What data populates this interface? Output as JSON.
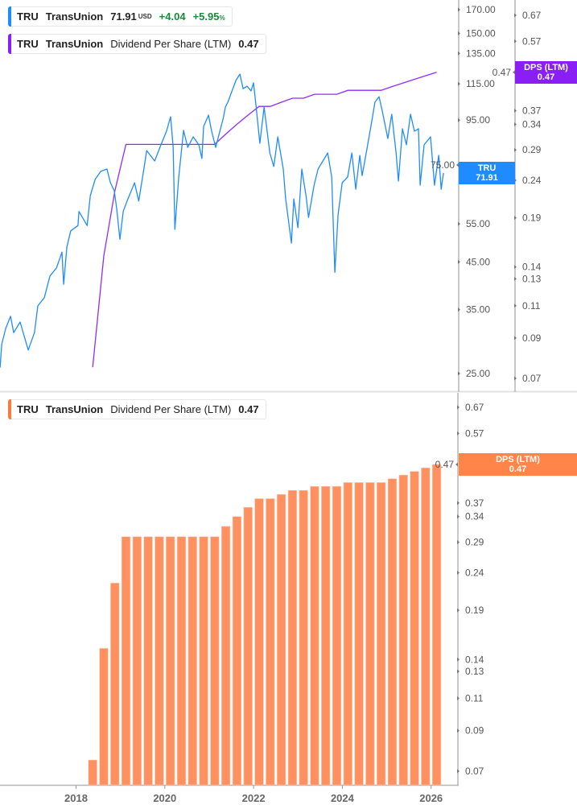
{
  "colors": {
    "price_line": "#1f8bff",
    "dps_line": "#8f2bff",
    "dps_bars": "#ff9160",
    "tru_badge": "#1e8cff",
    "dps_badge_top": "#8a1ff5",
    "dps_badge_bottom": "#ff8548"
  },
  "legends": {
    "price": {
      "ticker": "TRU",
      "name": "TransUnion",
      "price": "71.91",
      "currency": "USD",
      "change": "+4.04",
      "change_pct": "+5.95",
      "pct_sign": "%"
    },
    "dps_top": {
      "ticker": "TRU",
      "name": "TransUnion",
      "metric": "Dividend Per Share (LTM)",
      "value": "0.47"
    },
    "dps_bottom": {
      "ticker": "TRU",
      "name": "TransUnion",
      "metric": "Dividend Per Share (LTM)",
      "value": "0.47"
    }
  },
  "badges": {
    "tru": {
      "label": "TRU",
      "value": "71.91"
    },
    "dps_top": {
      "label": "DPS (LTM)",
      "value": "0.47"
    },
    "dps_bottom": {
      "label": "DPS (LTM)",
      "value": "0.47"
    }
  },
  "chart_data": [
    {
      "type": "line",
      "scale": "log",
      "x_ticks": [
        "2018",
        "2020",
        "2022",
        "2024",
        "2026"
      ],
      "y_ticks": [
        "170.00",
        "150.00",
        "135.00",
        "115.00",
        "95.00",
        "75.00",
        "55.00",
        "45.00",
        "35.00",
        "25.00"
      ],
      "y2_ticks": [
        "0.67",
        "0.57",
        "0.47",
        "0.37",
        "0.34",
        "0.29",
        "0.24",
        "0.19",
        "0.14",
        "0.13",
        "0.11",
        "0.09",
        "0.07"
      ],
      "ylim": [
        25,
        170
      ],
      "y2lim": [
        0.07,
        0.67
      ],
      "series": [
        {
          "name": "TRU",
          "axis": "left",
          "points": [
            [
              "2016-04-15",
              25.8
            ],
            [
              "2016-04-29",
              29.2
            ],
            [
              "2016-05-31",
              31.7
            ],
            [
              "2016-07-10",
              33.8
            ],
            [
              "2016-08-05",
              31.0
            ],
            [
              "2016-09-28",
              32.8
            ],
            [
              "2016-10-30",
              30.5
            ],
            [
              "2016-12-03",
              28.3
            ],
            [
              "2017-01-24",
              31.0
            ],
            [
              "2017-02-21",
              35.7
            ],
            [
              "2017-04-14",
              37.3
            ],
            [
              "2017-05-30",
              41.8
            ],
            [
              "2017-07-23",
              43.6
            ],
            [
              "2017-09-07",
              47.4
            ],
            [
              "2017-09-21",
              40.0
            ],
            [
              "2017-10-17",
              48.7
            ],
            [
              "2017-11-18",
              53.0
            ],
            [
              "2018-01-17",
              54.5
            ],
            [
              "2018-01-25",
              58.7
            ],
            [
              "2018-04-01",
              54.5
            ],
            [
              "2018-04-27",
              63.8
            ],
            [
              "2018-06-06",
              69.5
            ],
            [
              "2018-07-22",
              72.5
            ],
            [
              "2018-09-12",
              73.4
            ],
            [
              "2018-10-10",
              68.3
            ],
            [
              "2018-11-11",
              65.5
            ],
            [
              "2018-12-01",
              59.4
            ],
            [
              "2018-12-27",
              50.7
            ],
            [
              "2019-01-24",
              58.7
            ],
            [
              "2019-02-25",
              62.0
            ],
            [
              "2019-04-26",
              68.3
            ],
            [
              "2019-05-30",
              62.0
            ],
            [
              "2019-07-01",
              70.4
            ],
            [
              "2019-08-04",
              80.9
            ],
            [
              "2019-10-09",
              76.6
            ],
            [
              "2019-11-30",
              83.4
            ],
            [
              "2020-01-15",
              89.6
            ],
            [
              "2020-02-18",
              96.7
            ],
            [
              "2020-03-09",
              82.3
            ],
            [
              "2020-03-23",
              53.4
            ],
            [
              "2020-04-24",
              70.4
            ],
            [
              "2020-06-03",
              90.0
            ],
            [
              "2020-07-07",
              82.3
            ],
            [
              "2020-08-22",
              87.0
            ],
            [
              "2020-10-07",
              83.4
            ],
            [
              "2020-11-02",
              77.6
            ],
            [
              "2020-11-16",
              91.9
            ],
            [
              "2020-12-26",
              97.5
            ],
            [
              "2021-01-21",
              89.6
            ],
            [
              "2021-02-24",
              82.3
            ],
            [
              "2021-04-25",
              95.9
            ],
            [
              "2021-05-13",
              101.8
            ],
            [
              "2021-06-02",
              104.4
            ],
            [
              "2021-08-08",
              117.1
            ],
            [
              "2021-09-10",
              121.1
            ],
            [
              "2021-10-06",
              112.1
            ],
            [
              "2021-11-08",
              113.6
            ],
            [
              "2021-12-11",
              110.8
            ],
            [
              "2021-12-31",
              115.6
            ],
            [
              "2022-01-20",
              103.1
            ],
            [
              "2022-02-22",
              84.1
            ],
            [
              "2022-03-27",
              101.8
            ],
            [
              "2022-05-13",
              79.9
            ],
            [
              "2022-06-15",
              74.4
            ],
            [
              "2022-07-18",
              87.0
            ],
            [
              "2022-09-02",
              73.4
            ],
            [
              "2022-09-22",
              62.7
            ],
            [
              "2022-11-08",
              49.7
            ],
            [
              "2022-11-28",
              62.7
            ],
            [
              "2022-12-31",
              53.9
            ],
            [
              "2023-02-02",
              73.4
            ],
            [
              "2023-03-07",
              63.8
            ],
            [
              "2023-03-27",
              56.9
            ],
            [
              "2023-05-12",
              67.4
            ],
            [
              "2023-06-14",
              73.4
            ],
            [
              "2023-09-02",
              79.9
            ],
            [
              "2023-10-05",
              70.4
            ],
            [
              "2023-10-31",
              42.6
            ],
            [
              "2023-11-27",
              57.7
            ],
            [
              "2023-12-30",
              68.3
            ],
            [
              "2024-02-14",
              70.4
            ],
            [
              "2024-03-18",
              79.9
            ],
            [
              "2024-04-20",
              66.0
            ],
            [
              "2024-05-23",
              78.9
            ],
            [
              "2024-06-12",
              70.9
            ],
            [
              "2024-07-15",
              79.9
            ],
            [
              "2024-08-31",
              94.7
            ],
            [
              "2024-09-26",
              104.4
            ],
            [
              "2024-10-29",
              107.5
            ],
            [
              "2024-11-25",
              99.7
            ],
            [
              "2025-01-10",
              86.2
            ],
            [
              "2025-02-12",
              98.0
            ],
            [
              "2025-03-17",
              79.9
            ],
            [
              "2025-04-06",
              68.9
            ],
            [
              "2025-05-09",
              90.8
            ],
            [
              "2025-06-11",
              83.4
            ],
            [
              "2025-07-14",
              98.0
            ],
            [
              "2025-08-16",
              89.6
            ],
            [
              "2025-09-19",
              90.8
            ],
            [
              "2025-10-02",
              67.4
            ],
            [
              "2025-11-04",
              83.4
            ],
            [
              "2025-12-27",
              87.0
            ],
            [
              "2026-01-29",
              67.4
            ],
            [
              "2026-03-03",
              78.9
            ],
            [
              "2026-03-23",
              66.0
            ],
            [
              "2026-04-12",
              71.91
            ]
          ]
        },
        {
          "name": "Dividend Per Share (LTM)",
          "axis": "right",
          "source": "dps"
        }
      ]
    },
    {
      "type": "bar",
      "scale": "log",
      "y_ticks": [
        "0.67",
        "0.57",
        "0.47",
        "0.37",
        "0.34",
        "0.29",
        "0.24",
        "0.19",
        "0.14",
        "0.13",
        "0.11",
        "0.09",
        "0.07"
      ],
      "ylim": [
        0.07,
        0.67
      ],
      "x_ticks": [
        "2018",
        "2020",
        "2022",
        "2024",
        "2026"
      ],
      "dates": [
        "2018-04",
        "2018-07",
        "2018-10",
        "2019-01",
        "2019-04",
        "2019-07",
        "2019-10",
        "2020-01",
        "2020-04",
        "2020-07",
        "2020-10",
        "2021-01",
        "2021-04",
        "2021-07",
        "2021-10",
        "2022-01",
        "2022-04",
        "2022-07",
        "2022-10",
        "2023-01",
        "2023-04",
        "2023-07",
        "2023-10",
        "2024-01",
        "2024-04",
        "2024-07",
        "2024-10",
        "2025-01",
        "2025-04",
        "2025-07",
        "2025-10",
        "2026-01"
      ],
      "values": [
        0.075,
        0.15,
        0.225,
        0.3,
        0.3,
        0.3,
        0.3,
        0.3,
        0.3,
        0.3,
        0.3,
        0.3,
        0.32,
        0.34,
        0.36,
        0.38,
        0.38,
        0.39,
        0.4,
        0.4,
        0.41,
        0.41,
        0.41,
        0.42,
        0.42,
        0.42,
        0.42,
        0.43,
        0.44,
        0.45,
        0.46,
        0.47
      ]
    }
  ]
}
